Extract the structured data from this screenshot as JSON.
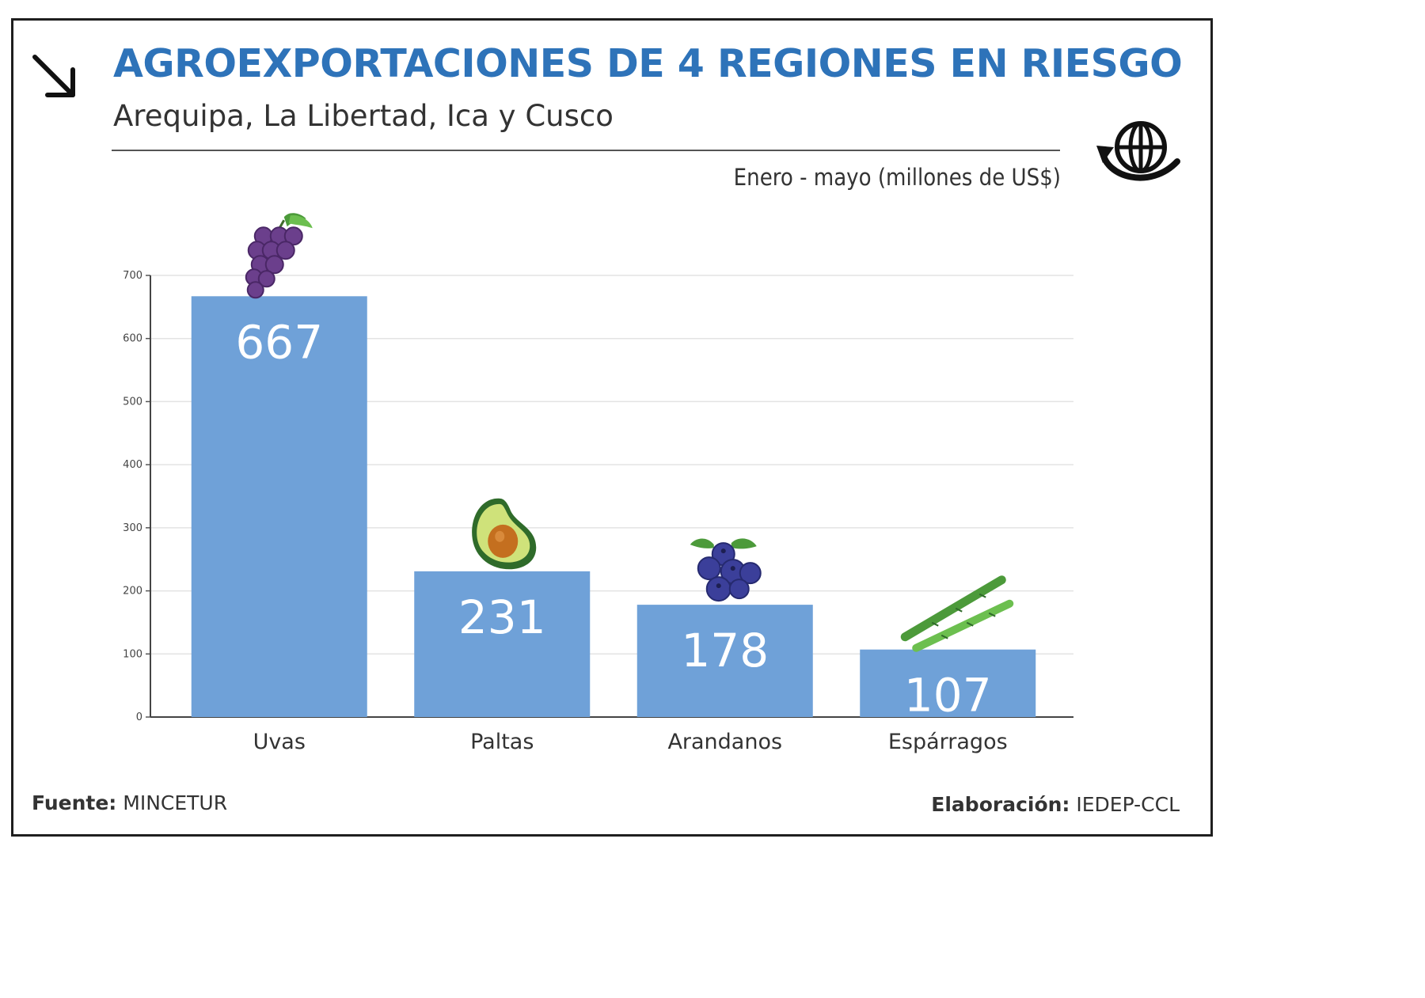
{
  "header": {
    "title": "AGROEXPORTACIONES DE 4 REGIONES EN RIESGO",
    "subtitle": "Arequipa, La Libertad, Ica y Cusco",
    "units_note": "Enero - mayo (millones de US$)"
  },
  "footer": {
    "source_label": "Fuente:",
    "source_value": "MINCETUR",
    "credit_label": "Elaboración:",
    "credit_value": "IEDEP-CCL"
  },
  "icons": {
    "corner": "arrow-down-right-icon",
    "header": "globe-trade-icon",
    "bars": [
      "grapes-icon",
      "avocado-icon",
      "blueberries-icon",
      "asparagus-icon"
    ]
  },
  "colors": {
    "title": "#2e73b9",
    "bar": "#6fa1d8",
    "bar_label": "#ffffff"
  },
  "chart_data": {
    "type": "bar",
    "title": "AGROEXPORTACIONES DE 4 REGIONES EN RIESGO",
    "subtitle": "Arequipa, La Libertad, Ica y Cusco",
    "categories": [
      "Uvas",
      "Paltas",
      "Arandanos",
      "Espárragos"
    ],
    "values": [
      667,
      231,
      178,
      107
    ],
    "value_labels": [
      "667",
      "231",
      "178",
      "107"
    ],
    "yticks": [
      0,
      100,
      200,
      300,
      400,
      500,
      600,
      700
    ],
    "ylim": [
      0,
      700
    ],
    "xlabel": "",
    "ylabel": "",
    "grid": true,
    "legend": "none"
  }
}
